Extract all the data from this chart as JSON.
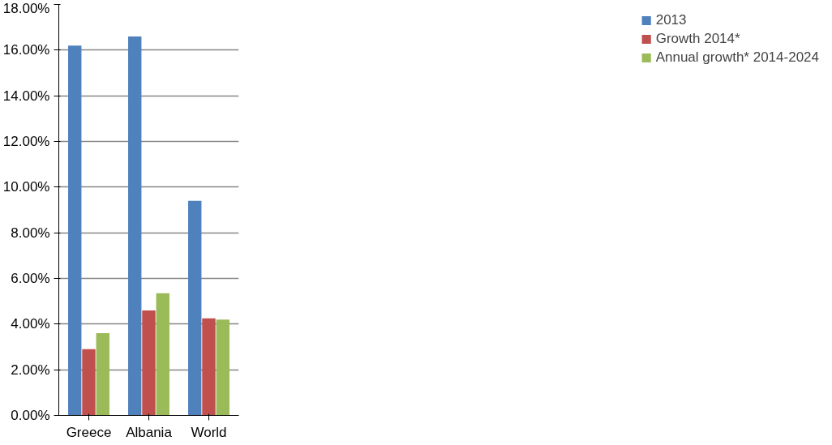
{
  "chart_data": {
    "type": "bar",
    "categories": [
      "Greece",
      "Albania",
      "World"
    ],
    "series": [
      {
        "name": "2013",
        "color": "#4f81bd",
        "values": [
          16.2,
          16.6,
          9.4
        ]
      },
      {
        "name": "Growth 2014*",
        "color": "#c0504d",
        "values": [
          2.9,
          4.6,
          4.25
        ]
      },
      {
        "name": "Annual growth* 2014-2024",
        "color": "#9bbb59",
        "values": [
          3.6,
          5.35,
          4.2
        ]
      }
    ],
    "ylim": [
      0,
      18
    ],
    "yticks": [
      {
        "value": 0,
        "label": "0.00%"
      },
      {
        "value": 2,
        "label": "2.00%"
      },
      {
        "value": 4,
        "label": "4.00%"
      },
      {
        "value": 6,
        "label": "6.00%"
      },
      {
        "value": 8,
        "label": "8.00%"
      },
      {
        "value": 10,
        "label": "10.00%"
      },
      {
        "value": 12,
        "label": "12.00%"
      },
      {
        "value": 14,
        "label": "14.00%"
      },
      {
        "value": 16,
        "label": "16.00%"
      },
      {
        "value": 18,
        "label": "18.00%"
      }
    ],
    "grid": "y",
    "legend": "right"
  }
}
